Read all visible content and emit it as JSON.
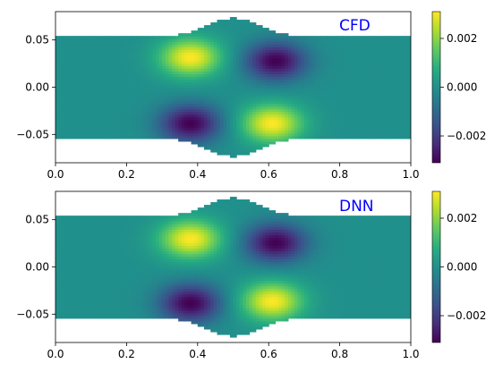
{
  "chart_data": [
    {
      "type": "heatmap",
      "annotation": "CFD",
      "annotation_color": "#0000ff",
      "xlim": [
        0,
        1.0
      ],
      "ylim": [
        -0.08,
        0.08
      ],
      "x_ticks": [
        0.0,
        0.2,
        0.4,
        0.6,
        0.8,
        1.0
      ],
      "x_tick_labels": [
        "0.0",
        "0.2",
        "0.4",
        "0.6",
        "0.8",
        "1.0"
      ],
      "y_ticks": [
        -0.05,
        0.0,
        0.05
      ],
      "y_tick_labels": [
        "−0.05",
        "0.00",
        "0.05"
      ],
      "colorbar": {
        "range": [
          -0.0031,
          0.0031
        ],
        "ticks": [
          -0.002,
          0.0,
          0.002
        ],
        "tick_labels": [
          "−0.002",
          "0.000",
          "0.002"
        ],
        "colormap": "viridis"
      },
      "domain": {
        "half_width": 0.054,
        "bump_height": 0.019,
        "bump_center": 0.5,
        "bump_width": 0.1
      },
      "extrema": [
        {
          "x": 0.38,
          "y": 0.032,
          "value": 0.0031
        },
        {
          "x": 0.62,
          "y": 0.028,
          "value": -0.0031
        },
        {
          "x": 0.38,
          "y": -0.038,
          "value": -0.0031
        },
        {
          "x": 0.61,
          "y": -0.038,
          "value": 0.0031
        }
      ]
    },
    {
      "type": "heatmap",
      "annotation": "DNN",
      "annotation_color": "#0000ff",
      "xlim": [
        0,
        1.0
      ],
      "ylim": [
        -0.08,
        0.08
      ],
      "x_ticks": [
        0.0,
        0.2,
        0.4,
        0.6,
        0.8,
        1.0
      ],
      "x_tick_labels": [
        "0.0",
        "0.2",
        "0.4",
        "0.6",
        "0.8",
        "1.0"
      ],
      "y_ticks": [
        -0.05,
        0.0,
        0.05
      ],
      "y_tick_labels": [
        "−0.05",
        "0.00",
        "0.05"
      ],
      "colorbar": {
        "range": [
          -0.0031,
          0.0031
        ],
        "ticks": [
          -0.002,
          0.0,
          0.002
        ],
        "tick_labels": [
          "−0.002",
          "0.000",
          "0.002"
        ],
        "colormap": "viridis"
      },
      "domain": {
        "half_width": 0.054,
        "bump_height": 0.019,
        "bump_center": 0.5,
        "bump_width": 0.1
      },
      "extrema": [
        {
          "x": 0.38,
          "y": 0.03,
          "value": 0.0031
        },
        {
          "x": 0.62,
          "y": 0.026,
          "value": -0.0031
        },
        {
          "x": 0.38,
          "y": -0.038,
          "value": -0.0031
        },
        {
          "x": 0.61,
          "y": -0.036,
          "value": 0.0031
        }
      ]
    }
  ]
}
